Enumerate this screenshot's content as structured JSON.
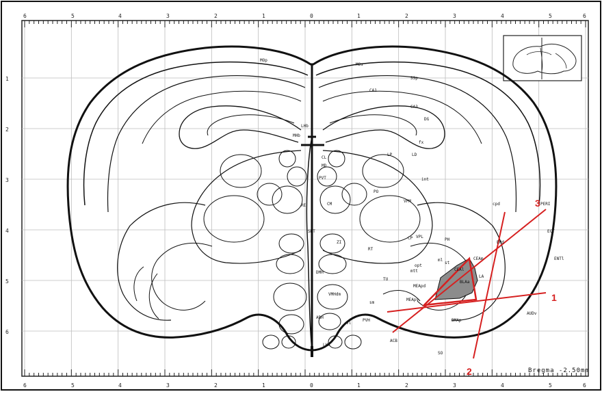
{
  "figure": {
    "bregma_label": "Bregma -2.50mm",
    "x_ticks_top": [
      "6",
      "5",
      "4",
      "3",
      "2",
      "1",
      "0",
      "1",
      "2",
      "3",
      "4",
      "5",
      "6"
    ],
    "x_ticks_bottom": [
      "6",
      "5",
      "4",
      "3",
      "2",
      "1",
      "0",
      "1",
      "2",
      "3",
      "4",
      "5",
      "6"
    ],
    "y_ticks": [
      "1",
      "2",
      "3",
      "4",
      "5",
      "6"
    ],
    "markers": [
      {
        "id": "1",
        "label": "1"
      },
      {
        "id": "2",
        "label": "2"
      },
      {
        "id": "3",
        "label": "3"
      }
    ],
    "region_labels": [
      "MOp",
      "MOs",
      "SSp",
      "CA1",
      "CA3",
      "DG",
      "LHb",
      "MHb",
      "LD",
      "LP",
      "PO",
      "VPM",
      "VPL",
      "CL",
      "MD",
      "PVT",
      "CM",
      "RE",
      "SMT",
      "ZI",
      "RT",
      "CP",
      "PH",
      "DMH",
      "VMHdm",
      "ARH",
      "LHA",
      "TU",
      "PVH",
      "CEAl",
      "CEAm",
      "BLAa",
      "LA",
      "BMAp",
      "MEApd",
      "MEApv",
      "EPd",
      "int",
      "opt",
      "fx",
      "ml",
      "cpd",
      "st",
      "mtt",
      "vl",
      "sm",
      "ENTl",
      "ECT",
      "PERI",
      "AUDv",
      "ACB",
      "SO"
    ],
    "colors": {
      "line": "#111111",
      "highlight": "#d62020",
      "shaded_region": "#8c8c8c",
      "grid": "#bdbdbd"
    }
  }
}
